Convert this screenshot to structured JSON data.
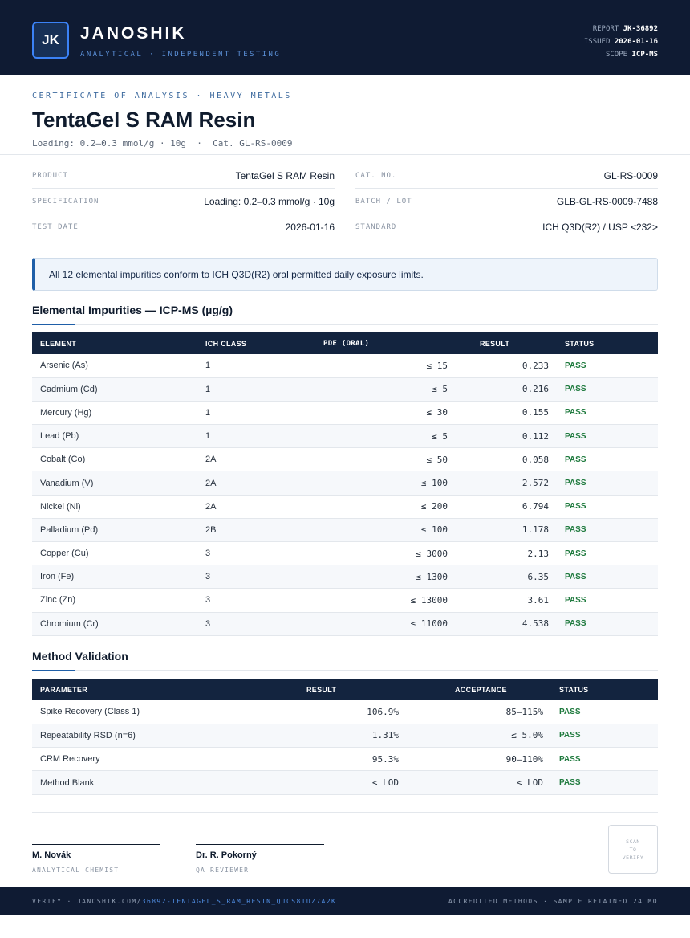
{
  "header": {
    "logo_text": "JK",
    "brand": "JANOSHIK",
    "tagline": "ANALYTICAL · INDEPENDENT TESTING",
    "report_label": "REPORT",
    "report_value": "JK-36892",
    "issued_label": "ISSUED",
    "issued_value": "2026-01-16",
    "scope_label": "SCOPE",
    "scope_value": "ICP-MS"
  },
  "title_block": {
    "overline": "CERTIFICATE OF ANALYSIS · HEAVY METALS",
    "title": "TentaGel S RAM Resin",
    "subtitle": "Loading: 0.2–0.3 mmol/g · 10g  ·  Cat. GL-RS-0009"
  },
  "info": {
    "product_label": "PRODUCT",
    "product_value": "TentaGel S RAM Resin",
    "spec_label": "SPECIFICATION",
    "spec_value": "Loading: 0.2–0.3 mmol/g · 10g",
    "date_label": "TEST DATE",
    "date_value": "2026-01-16",
    "cat_label": "CAT. NO.",
    "cat_value": "GL-RS-0009",
    "batch_label": "BATCH / LOT",
    "batch_value": "GLB-GL-RS-0009-7488",
    "standard_label": "STANDARD",
    "standard_value": "ICH Q3D(R2) / USP <232>"
  },
  "notice": "All 12 elemental impurities conform to ICH Q3D(R2) oral permitted daily exposure limits.",
  "impurities": {
    "title": "Elemental Impurities — ICP-MS (µg/g)",
    "headers": [
      "ELEMENT",
      "ICH CLASS",
      "PDE (ORAL)",
      "RESULT",
      "STATUS"
    ],
    "rows": [
      {
        "element": "Arsenic (As)",
        "class": "1",
        "pde": "≤ 15",
        "result": "0.233",
        "status": "PASS"
      },
      {
        "element": "Cadmium (Cd)",
        "class": "1",
        "pde": "≤ 5",
        "result": "0.216",
        "status": "PASS"
      },
      {
        "element": "Mercury (Hg)",
        "class": "1",
        "pde": "≤ 30",
        "result": "0.155",
        "status": "PASS"
      },
      {
        "element": "Lead (Pb)",
        "class": "1",
        "pde": "≤ 5",
        "result": "0.112",
        "status": "PASS"
      },
      {
        "element": "Cobalt (Co)",
        "class": "2A",
        "pde": "≤ 50",
        "result": "0.058",
        "status": "PASS"
      },
      {
        "element": "Vanadium (V)",
        "class": "2A",
        "pde": "≤ 100",
        "result": "2.572",
        "status": "PASS"
      },
      {
        "element": "Nickel (Ni)",
        "class": "2A",
        "pde": "≤ 200",
        "result": "6.794",
        "status": "PASS"
      },
      {
        "element": "Palladium (Pd)",
        "class": "2B",
        "pde": "≤ 100",
        "result": "1.178",
        "status": "PASS"
      },
      {
        "element": "Copper (Cu)",
        "class": "3",
        "pde": "≤ 3000",
        "result": "2.13",
        "status": "PASS"
      },
      {
        "element": "Iron (Fe)",
        "class": "3",
        "pde": "≤ 1300",
        "result": "6.35",
        "status": "PASS"
      },
      {
        "element": "Zinc (Zn)",
        "class": "3",
        "pde": "≤ 13000",
        "result": "3.61",
        "status": "PASS"
      },
      {
        "element": "Chromium (Cr)",
        "class": "3",
        "pde": "≤ 11000",
        "result": "4.538",
        "status": "PASS"
      }
    ]
  },
  "validation": {
    "title": "Method Validation",
    "headers": [
      "PARAMETER",
      "RESULT",
      "ACCEPTANCE",
      "STATUS"
    ],
    "rows": [
      {
        "parameter": "Spike Recovery (Class 1)",
        "result": "106.9%",
        "acceptance": "85–115%",
        "status": "PASS"
      },
      {
        "parameter": "Repeatability RSD (n=6)",
        "result": "1.31%",
        "acceptance": "≤ 5.0%",
        "status": "PASS"
      },
      {
        "parameter": "CRM Recovery",
        "result": "95.3%",
        "acceptance": "90–110%",
        "status": "PASS"
      },
      {
        "parameter": "Method Blank",
        "result": "< LOD",
        "acceptance": "< LOD",
        "status": "PASS"
      }
    ]
  },
  "signatures": [
    {
      "name": "M. Novák",
      "role": "ANALYTICAL CHEMIST"
    },
    {
      "name": "Dr. R. Pokorný",
      "role": "QA REVIEWER"
    }
  ],
  "qr": {
    "line1": "SCAN",
    "line2": "TO",
    "line3": "VERIFY"
  },
  "footer": {
    "verify_prefix": "VERIFY · JANOSHIK.COM/",
    "verify_link": "36892-TENTAGEL_S_RAM_RESIN_QJCS8TUZ7A2K",
    "right": "ACCREDITED METHODS · SAMPLE RETAINED 24 MO"
  },
  "colors": {
    "navy": "#0f1b33",
    "accent": "#1f5fa8",
    "pass": "#1f7a3e"
  }
}
